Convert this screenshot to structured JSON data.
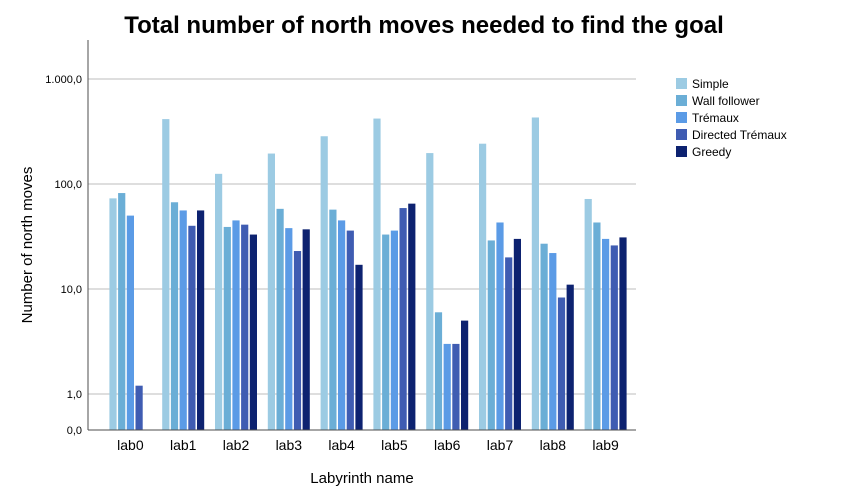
{
  "chart_data": {
    "type": "bar",
    "title": "Total number of north moves needed to find the goal",
    "xlabel": "Labyrinth name",
    "ylabel": "Number of north moves",
    "yscale": "log",
    "ylim": [
      0,
      2000
    ],
    "yticks": [
      {
        "value": 0,
        "label": "0,0"
      },
      {
        "value": 1,
        "label": "1,0"
      },
      {
        "value": 10,
        "label": "10,0"
      },
      {
        "value": 100,
        "label": "100,0"
      },
      {
        "value": 1000,
        "label": "1.000,0"
      }
    ],
    "grid": true,
    "legend_position": "right",
    "categories": [
      "lab0",
      "lab1",
      "lab2",
      "lab3",
      "lab4",
      "lab5",
      "lab6",
      "lab7",
      "lab8",
      "lab9"
    ],
    "series": [
      {
        "name": "Simple",
        "color": "#9ccbe3",
        "values": [
          73,
          415,
          125,
          195,
          285,
          420,
          197,
          242,
          430,
          72
        ]
      },
      {
        "name": "Wall follower",
        "color": "#6baed6",
        "values": [
          82,
          67,
          39,
          58,
          57,
          33,
          6,
          29,
          27,
          43
        ]
      },
      {
        "name": "Trémaux",
        "color": "#5b9be6",
        "values": [
          50,
          56,
          45,
          38,
          45,
          36,
          3,
          43,
          22,
          30
        ]
      },
      {
        "name": "Directed Trémaux",
        "color": "#3f5cb2",
        "values": [
          1.2,
          40,
          41,
          23,
          36,
          59,
          3,
          20,
          8.3,
          26
        ]
      },
      {
        "name": "Greedy",
        "color": "#0d2270",
        "values": [
          null,
          56,
          33,
          37,
          17,
          65,
          5,
          30,
          11,
          31
        ]
      }
    ]
  }
}
